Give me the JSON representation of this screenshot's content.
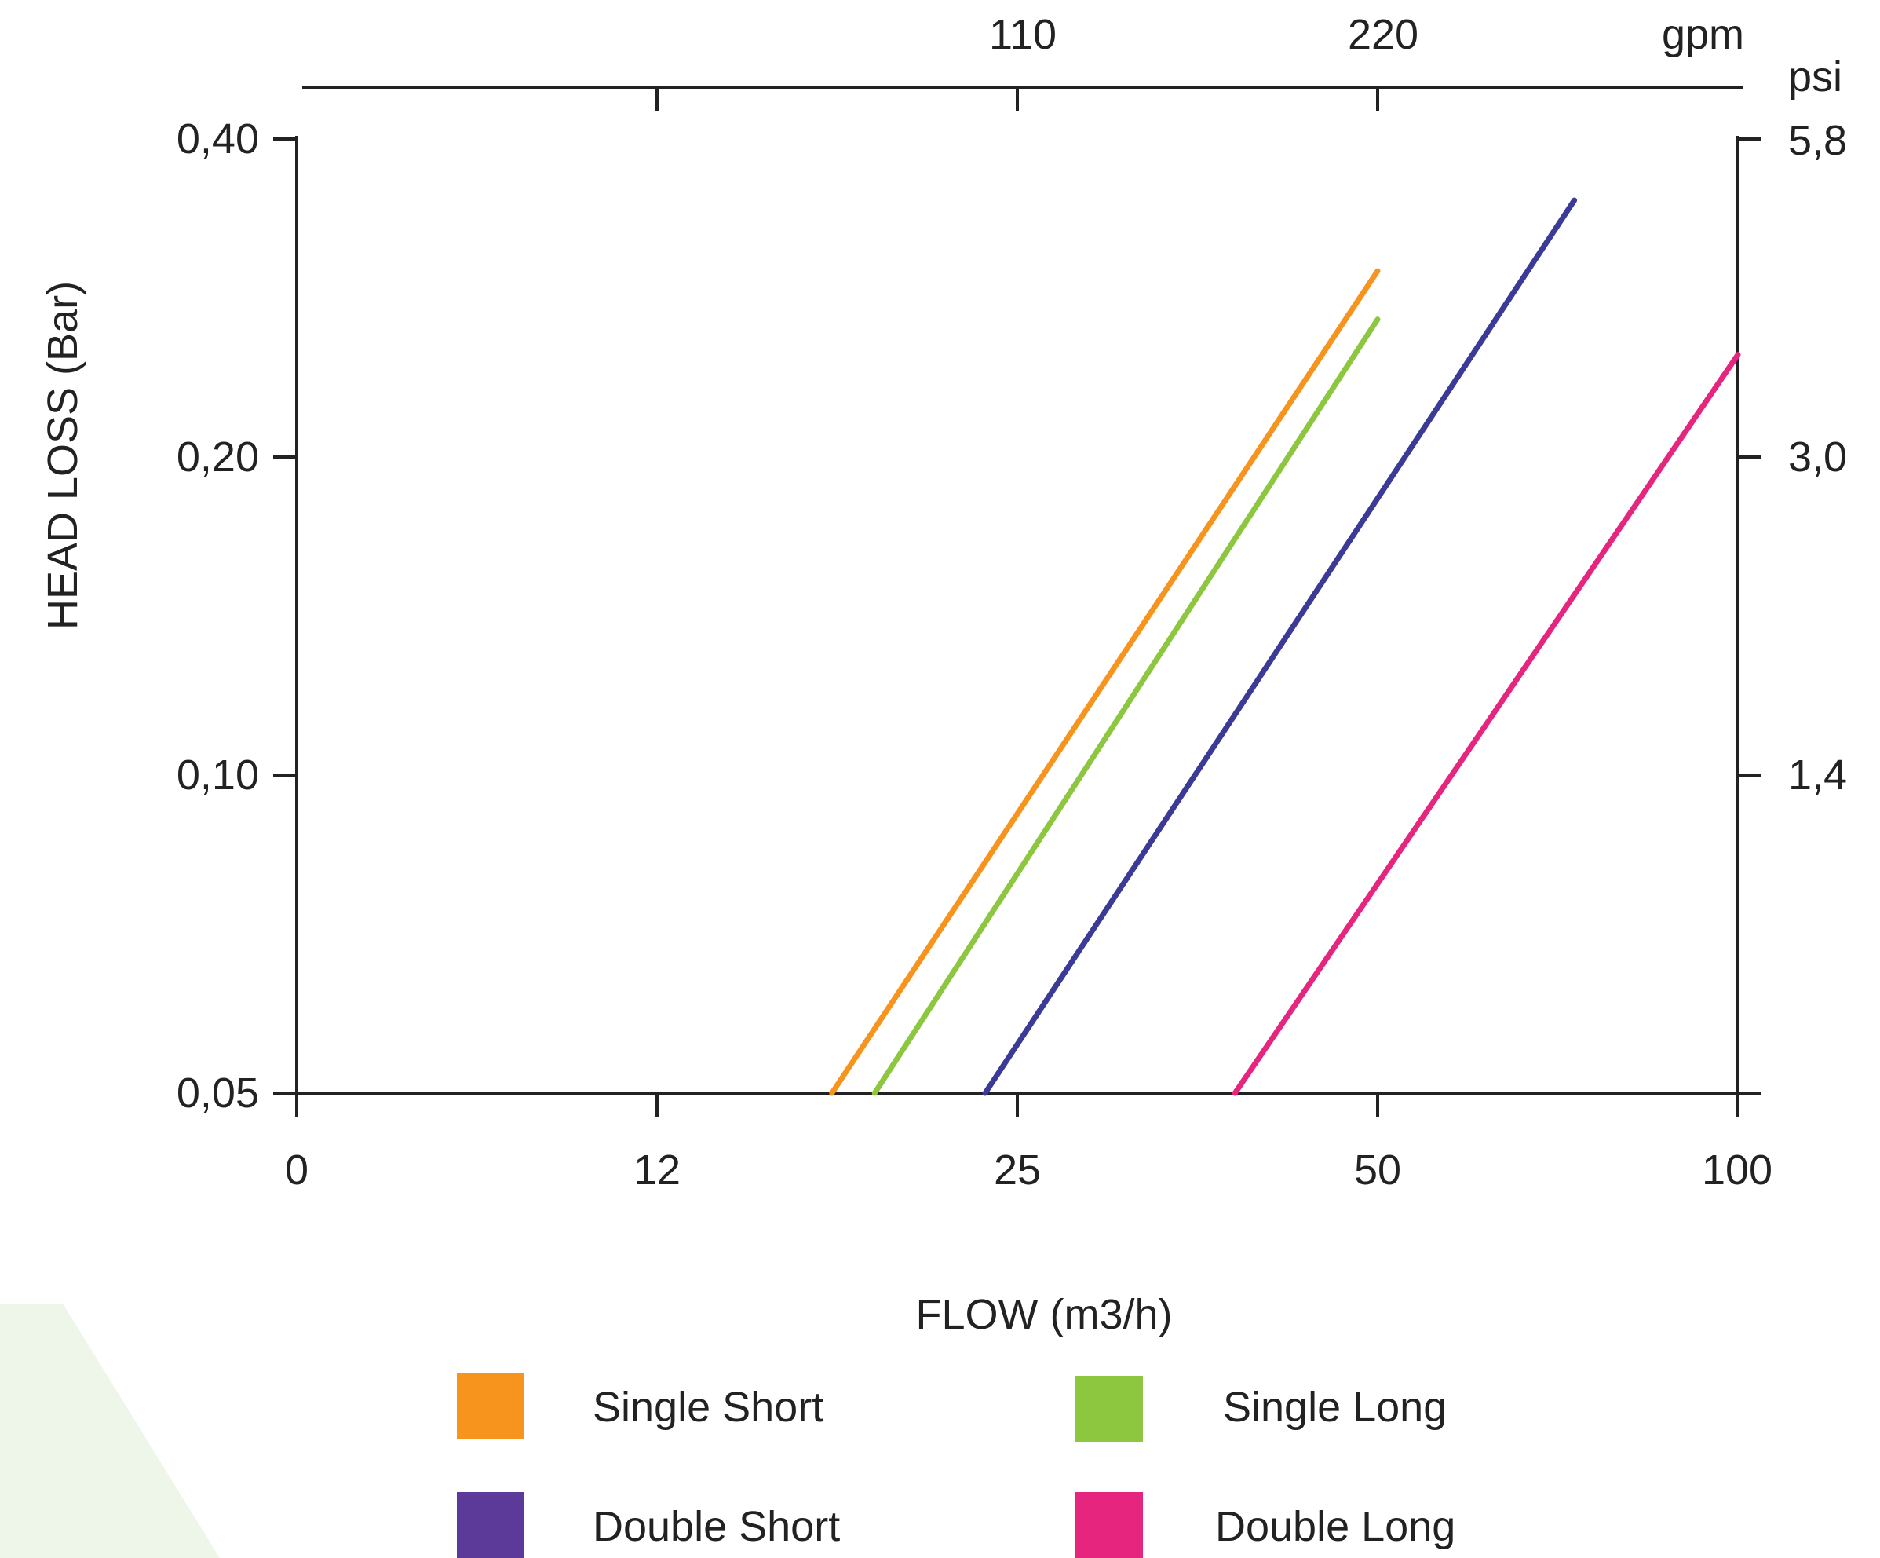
{
  "chart_data": {
    "type": "line",
    "xlabel": "FLOW (m3/h)",
    "ylabel": "HEAD LOSS (Bar)",
    "x_scale": "log",
    "y_scale": "log",
    "x_ticks": [
      "0",
      "12",
      "25",
      "50",
      "100"
    ],
    "y_ticks": [
      "0,05",
      "0,10",
      "0,20",
      "0,40"
    ],
    "top_axis": {
      "unit": "gpm",
      "ticks": [
        "110",
        "220"
      ]
    },
    "right_axis": {
      "unit": "psi",
      "ticks": [
        "1,4",
        "3,0",
        "5,8"
      ]
    },
    "legend_placement": "bottom",
    "series": [
      {
        "name": "Single Short",
        "color": "#f7941d",
        "x": [
          17.5,
          50.0
        ],
        "y": [
          0.05,
          0.3
        ]
      },
      {
        "name": "Single Long",
        "color": "#8dc63f",
        "x": [
          19.0,
          50.0
        ],
        "y": [
          0.05,
          0.27
        ]
      },
      {
        "name": "Double Short",
        "color": "#3b3a96",
        "x": [
          23.5,
          73.0
        ],
        "y": [
          0.05,
          0.35
        ]
      },
      {
        "name": "Double Long",
        "color": "#e6257f",
        "x": [
          38.0,
          100.0
        ],
        "y": [
          0.05,
          0.25
        ]
      }
    ],
    "legend_swatch_colors": [
      "#f7941d",
      "#8dc63f",
      "#5b3a9a",
      "#e6257f"
    ],
    "axis_color": "#222222",
    "corner_tint": "#eef6ea"
  }
}
